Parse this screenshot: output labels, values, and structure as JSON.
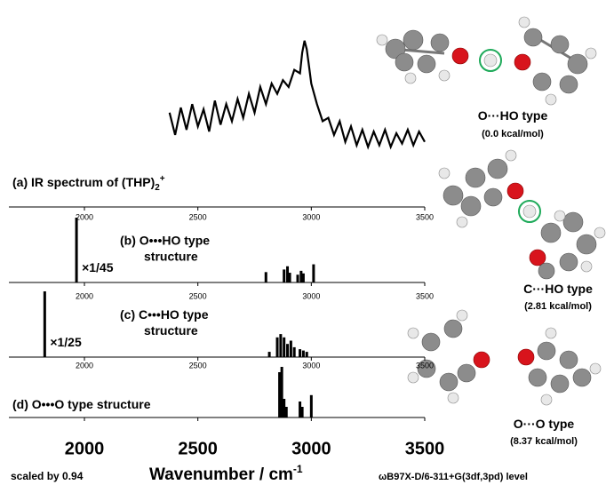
{
  "chart_data": [
    {
      "type": "line",
      "title": "(a) IR spectrum of (THP)",
      "title_sub": "2",
      "title_sup": "+",
      "color": "#000000",
      "x": [
        2375,
        2400,
        2425,
        2450,
        2475,
        2500,
        2525,
        2550,
        2575,
        2600,
        2625,
        2650,
        2675,
        2700,
        2725,
        2750,
        2775,
        2800,
        2825,
        2850,
        2875,
        2900,
        2925,
        2950,
        2960,
        2970,
        2980,
        2990,
        3000,
        3025,
        3050,
        3075,
        3100,
        3125,
        3150,
        3175,
        3200,
        3225,
        3250,
        3275,
        3300,
        3325,
        3350,
        3375,
        3400,
        3425,
        3450,
        3475,
        3500
      ],
      "values": [
        0.55,
        0.42,
        0.58,
        0.45,
        0.6,
        0.47,
        0.57,
        0.44,
        0.62,
        0.48,
        0.6,
        0.5,
        0.63,
        0.52,
        0.66,
        0.55,
        0.7,
        0.6,
        0.72,
        0.66,
        0.74,
        0.7,
        0.8,
        0.78,
        0.9,
        0.97,
        0.92,
        0.82,
        0.72,
        0.6,
        0.5,
        0.52,
        0.42,
        0.5,
        0.38,
        0.47,
        0.36,
        0.45,
        0.35,
        0.44,
        0.36,
        0.45,
        0.35,
        0.43,
        0.37,
        0.45,
        0.36,
        0.44,
        0.38
      ],
      "xlim": [
        1667,
        3500
      ],
      "ylim": [
        0,
        1
      ],
      "xticks": [
        2000,
        2500,
        3000,
        3500
      ]
    },
    {
      "type": "bar",
      "title": "(b) O•••HO type",
      "title2": "structure",
      "scale_label": "×1/45",
      "color": "#000000",
      "x": [
        1965,
        2800,
        2880,
        2895,
        2905,
        2940,
        2955,
        2965,
        3010
      ],
      "values": [
        1,
        0.16,
        0.2,
        0.25,
        0.15,
        0.12,
        0.18,
        0.14,
        0.28
      ],
      "xlim": [
        1667,
        3500
      ],
      "ylim": [
        0,
        1
      ],
      "xticks": [
        2000,
        2500,
        3000,
        3500
      ]
    },
    {
      "type": "bar",
      "title": "(c) C•••HO type",
      "title2": "structure",
      "scale_label": "×1/25",
      "color": "#000000",
      "x": [
        1825,
        2815,
        2850,
        2865,
        2880,
        2895,
        2910,
        2925,
        2950,
        2965,
        2980
      ],
      "values": [
        1,
        0.08,
        0.3,
        0.35,
        0.3,
        0.2,
        0.25,
        0.15,
        0.12,
        0.1,
        0.08
      ],
      "xlim": [
        1667,
        3500
      ],
      "ylim": [
        0,
        1
      ],
      "xticks": [
        2000,
        2500,
        3000,
        3500
      ]
    },
    {
      "type": "bar",
      "title": "(d) O•••O type structure",
      "color": "#000000",
      "x": [
        2860,
        2870,
        2880,
        2890,
        2950,
        2960,
        3000
      ],
      "values": [
        0.85,
        0.95,
        0.35,
        0.2,
        0.3,
        0.2,
        0.42
      ],
      "xlim": [
        1667,
        3500
      ],
      "ylim": [
        0,
        1
      ],
      "xticks": [
        2000,
        2500,
        3000,
        3500
      ]
    }
  ],
  "footer": {
    "scale_note": "scaled by 0.94",
    "xlabel": "Wavenumber / cm",
    "xlabel_sup": "-1",
    "method": "ωB97X-D/6-311+G(3df,3pd) level"
  },
  "structures": [
    {
      "label": "O···HO type",
      "energy": "(0.0 kcal/mol)"
    },
    {
      "label": "C···HO type",
      "energy": "(2.81 kcal/mol)"
    },
    {
      "label": "O···O type",
      "energy": "(8.37 kcal/mol)"
    }
  ]
}
